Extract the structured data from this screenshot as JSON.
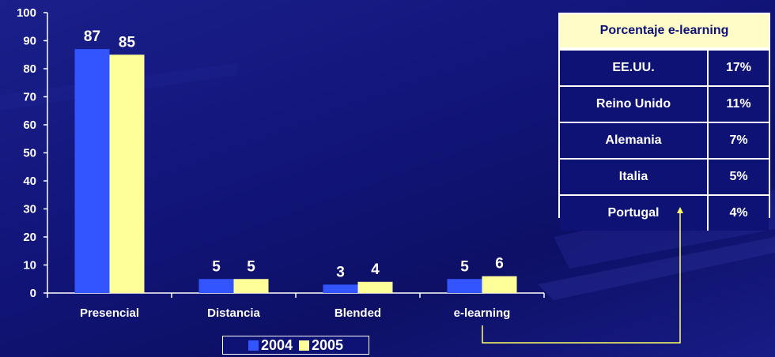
{
  "chart_data": {
    "type": "bar",
    "categories": [
      "Presencial",
      "Distancia",
      "Blended",
      "e-learning"
    ],
    "series": [
      {
        "name": "2004",
        "values": [
          87,
          5,
          3,
          5
        ]
      },
      {
        "name": "2005",
        "values": [
          85,
          5,
          4,
          6
        ]
      }
    ],
    "ylim": [
      0,
      100
    ],
    "yticks": [
      0,
      10,
      20,
      30,
      40,
      50,
      60,
      70,
      80,
      90,
      100
    ],
    "grid": false,
    "legend_position": "bottom-center",
    "colors": {
      "2004": "#3355ff",
      "2005": "#ffff99"
    }
  },
  "legend": {
    "items": [
      {
        "label": "2004",
        "color": "#3355ff"
      },
      {
        "label": "2005",
        "color": "#ffff99"
      }
    ]
  },
  "table": {
    "title": "Porcentaje e-learning",
    "rows": [
      {
        "country": "EE.UU.",
        "pct": "17%"
      },
      {
        "country": "Reino Unido",
        "pct": "11%"
      },
      {
        "country": "Alemania",
        "pct": "7%"
      },
      {
        "country": "Italia",
        "pct": "5%"
      },
      {
        "country": "Portugal",
        "pct": "4%"
      }
    ]
  },
  "colors": {
    "background": "#12157a",
    "table_header_bg": "#fffcc8",
    "table_body_bg": "#0e1275",
    "connector": "#ffff66"
  }
}
